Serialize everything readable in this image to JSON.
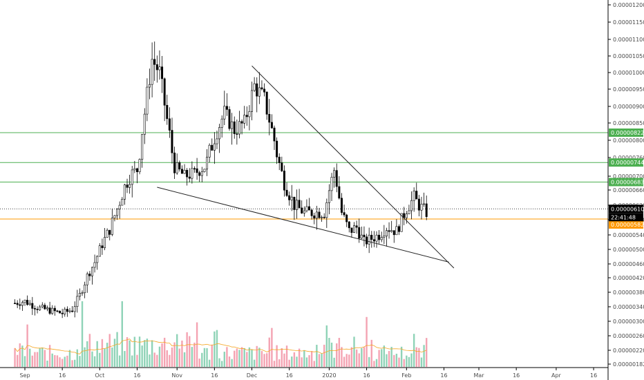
{
  "chart_data": {
    "type": "candlestick",
    "title": "",
    "xlabel": "",
    "ylabel": "",
    "grid": false,
    "y_ticks": [
      "0.00001200",
      "0.00001150",
      "0.00001100",
      "0.00001050",
      "0.00001000",
      "0.00000950",
      "0.00000900",
      "0.00000850",
      "0.00000800",
      "0.00000760",
      "0.00000700",
      "0.00000660",
      "0.00000620",
      "0.00000580",
      "0.00000540",
      "0.00000500",
      "0.00000460",
      "0.00000420",
      "0.00000380",
      "0.00000340",
      "0.00000300",
      "0.00000260",
      "0.00000220",
      "0.00000182"
    ],
    "x_ticks": [
      "Sep",
      "16",
      "Oct",
      "16",
      "Nov",
      "16",
      "Dec",
      "16",
      "2020",
      "16",
      "Feb",
      "16",
      "Mar",
      "16",
      "Apr",
      "16"
    ],
    "horizontal_levels": [
      {
        "value": 8.22e-06,
        "label": "0.00000822",
        "color": "#4caf50"
      },
      {
        "value": 7.44e-06,
        "label": "0.00000744",
        "color": "#4caf50"
      },
      {
        "value": 6.83e-06,
        "label": "0.00000683",
        "color": "#4caf50"
      },
      {
        "value": 5.82e-06,
        "label": "0.00000582",
        "color": "#ff9800"
      }
    ],
    "last_price": {
      "value": 6.1e-06,
      "label": "0.00000610",
      "countdown": "22:41:48",
      "color": "#000000"
    },
    "trendlines": [
      {
        "name": "upper",
        "from": [
          "Dec 1",
          1.02e-05
        ],
        "to": [
          "Feb 20",
          4.48e-06
        ]
      },
      {
        "name": "lower",
        "from": [
          "Oct 24",
          6.68e-06
        ],
        "to": [
          "Feb 18",
          4.65e-06
        ]
      }
    ],
    "price_anchors": [
      [
        "Aug 28",
        3.5e-06
      ],
      [
        "Sep 1",
        3.55e-06
      ],
      [
        "Sep 6",
        3.38e-06
      ],
      [
        "Sep 11",
        3.3e-06
      ],
      [
        "Sep 16",
        3.22e-06
      ],
      [
        "Sep 20",
        3.32e-06
      ],
      [
        "Sep 23",
        3.72e-06
      ],
      [
        "Sep 26",
        4.25e-06
      ],
      [
        "Sep 29",
        4.65e-06
      ],
      [
        "Oct 2",
        5.15e-06
      ],
      [
        "Oct 5",
        5.55e-06
      ],
      [
        "Oct 8",
        6.1e-06
      ],
      [
        "Oct 11",
        6.7e-06
      ],
      [
        "Oct 14",
        7.1e-06
      ],
      [
        "Oct 16",
        7.2e-06
      ],
      [
        "Oct 19",
        8.8e-06
      ],
      [
        "Oct 22",
        1.04e-05
      ],
      [
        "Oct 25",
        1e-05
      ],
      [
        "Oct 28",
        8.6e-06
      ],
      [
        "Oct 31",
        7.3e-06
      ],
      [
        "Nov 4",
        7e-06
      ],
      [
        "Nov 8",
        7.1e-06
      ],
      [
        "Nov 12",
        7.3e-06
      ],
      [
        "Nov 16",
        8.1e-06
      ],
      [
        "Nov 20",
        8.8e-06
      ],
      [
        "Nov 24",
        8.3e-06
      ],
      [
        "Nov 28",
        8.5e-06
      ],
      [
        "Dec 2",
        9.6e-06
      ],
      [
        "Dec 6",
        9.2e-06
      ],
      [
        "Dec 10",
        8e-06
      ],
      [
        "Dec 14",
        6.8e-06
      ],
      [
        "Dec 18",
        6.2e-06
      ],
      [
        "Dec 22",
        6e-06
      ],
      [
        "Dec 26",
        6e-06
      ],
      [
        "Dec 30",
        6e-06
      ],
      [
        "Jan 1",
        6.6e-06
      ],
      [
        "Jan 3",
        7.2e-06
      ],
      [
        "Jan 6",
        6e-06
      ],
      [
        "Jan 9",
        5.5e-06
      ],
      [
        "Jan 12",
        5.6e-06
      ],
      [
        "Jan 15",
        5.2e-06
      ],
      [
        "Jan 18",
        5.3e-06
      ],
      [
        "Jan 21",
        5.4e-06
      ],
      [
        "Jan 24",
        5.6e-06
      ],
      [
        "Jan 28",
        5.5e-06
      ],
      [
        "Feb 1",
        6.1e-06
      ],
      [
        "Feb 4",
        6.4e-06
      ],
      [
        "Feb 6",
        6.2e-06
      ],
      [
        "Feb 9",
        6e-06
      ]
    ],
    "volume": {
      "series": "volume bars",
      "ma_color": "#f5a623",
      "up_color": "#8fd3b7",
      "down_color": "#f4a3b2"
    },
    "colors": {
      "up": "#ffffff",
      "down": "#000000",
      "wick": "#000000",
      "axis_text": "#4a4a4a",
      "axis_line": "#000000"
    }
  }
}
